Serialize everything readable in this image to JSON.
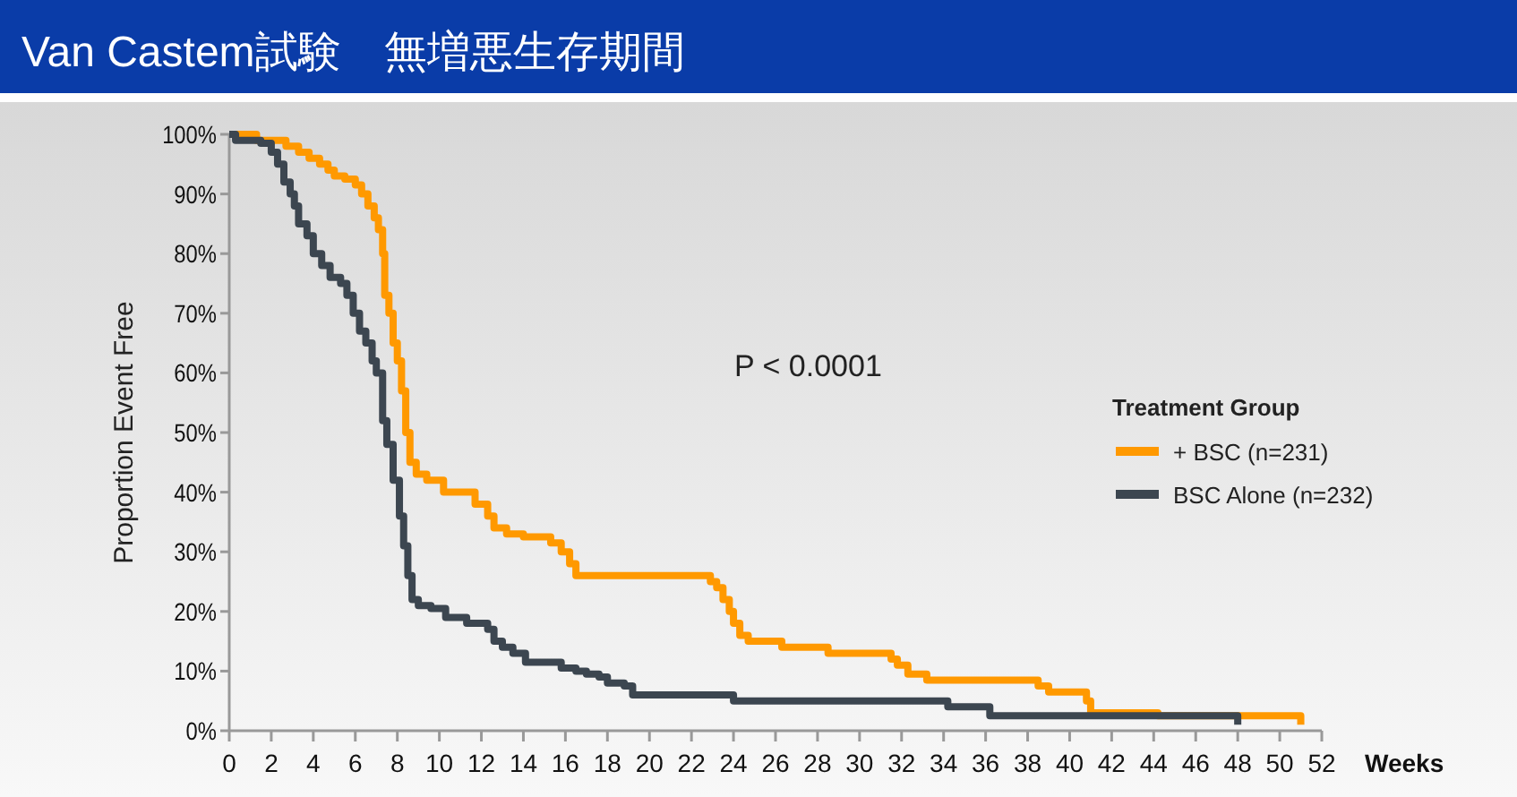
{
  "chart_data": {
    "type": "step",
    "title": "Van Castem試験　無増悪生存期間",
    "xlabel": "Weeks",
    "ylabel": "Proportion Event Free",
    "legend_title": "Treatment Group",
    "legend": "right",
    "grid": false,
    "line_style": "solid",
    "marker": "none",
    "annotations": [
      "P < 0.0001"
    ],
    "xlim": [
      0,
      52
    ],
    "xticks": [
      0,
      2,
      4,
      6,
      8,
      10,
      12,
      14,
      16,
      18,
      20,
      22,
      24,
      26,
      28,
      30,
      32,
      34,
      36,
      38,
      40,
      42,
      44,
      46,
      48,
      50,
      52
    ],
    "ylim": [
      0,
      100
    ],
    "yticks": [
      {
        "value": 0,
        "label": "0%"
      },
      {
        "value": 10,
        "label": "10%"
      },
      {
        "value": 20,
        "label": "20%"
      },
      {
        "value": 30,
        "label": "30%"
      },
      {
        "value": 40,
        "label": "40%"
      },
      {
        "value": 50,
        "label": "50%"
      },
      {
        "value": 60,
        "label": "60%"
      },
      {
        "value": 70,
        "label": "70%"
      },
      {
        "value": 80,
        "label": "80%"
      },
      {
        "value": 90,
        "label": "90%"
      },
      {
        "value": 100,
        "label": "100%"
      }
    ],
    "series": [
      {
        "name": "+ BSC (n=231)",
        "color": "#ff9900",
        "x": [
          0,
          1.3,
          2.7,
          3.3,
          3.8,
          4.3,
          4.7,
          5,
          5.5,
          6,
          6.3,
          6.6,
          6.9,
          7.1,
          7.3,
          7.4,
          7.6,
          7.8,
          8,
          8.2,
          8.4,
          8.6,
          8.9,
          9.4,
          10.2,
          11.7,
          12.3,
          12.6,
          13.2,
          14,
          15.3,
          15.8,
          16.2,
          16.5,
          22.9,
          23.2,
          23.5,
          23.8,
          24,
          24.3,
          24.7,
          26.3,
          28.5,
          31.5,
          31.8,
          32.3,
          33.2,
          38.5,
          39,
          40.8,
          41,
          44.2,
          51
        ],
        "values": [
          100,
          99,
          98,
          97,
          96,
          95,
          94,
          93,
          92.5,
          91.5,
          90,
          88,
          86,
          84,
          80,
          73,
          70,
          65,
          62,
          57,
          50,
          45,
          43,
          42,
          40,
          38,
          36,
          34,
          33,
          32.5,
          31.5,
          30,
          28,
          26,
          25,
          24,
          22,
          20,
          18,
          16,
          15,
          14,
          13,
          12,
          11,
          9.5,
          8.5,
          7.5,
          6.5,
          5,
          3,
          2.5,
          1
        ]
      },
      {
        "name": "BSC Alone (n=232)",
        "color": "#3c4650",
        "x": [
          0,
          0.3,
          1.5,
          2,
          2.3,
          2.6,
          2.9,
          3.1,
          3.3,
          3.7,
          4,
          4.4,
          4.8,
          5.3,
          5.6,
          5.9,
          6.2,
          6.5,
          6.8,
          7,
          7.3,
          7.5,
          7.8,
          8.1,
          8.3,
          8.5,
          8.7,
          9,
          9.6,
          10.3,
          11.3,
          12.3,
          12.6,
          13,
          13.5,
          14.1,
          15.8,
          16.5,
          17,
          17.6,
          18,
          18.8,
          19.2,
          24,
          34.2,
          36.2,
          48
        ],
        "values": [
          100,
          99,
          98.5,
          97,
          95,
          92,
          90,
          88,
          85,
          83,
          80,
          78,
          76,
          75,
          73,
          70,
          67,
          65,
          62,
          60,
          52,
          48,
          42,
          36,
          31,
          26,
          22,
          21,
          20.5,
          19,
          18,
          17,
          15,
          14,
          13,
          11.5,
          10.5,
          10,
          9.5,
          9,
          8,
          7.5,
          6,
          5,
          4,
          2.5,
          1
        ]
      }
    ]
  }
}
